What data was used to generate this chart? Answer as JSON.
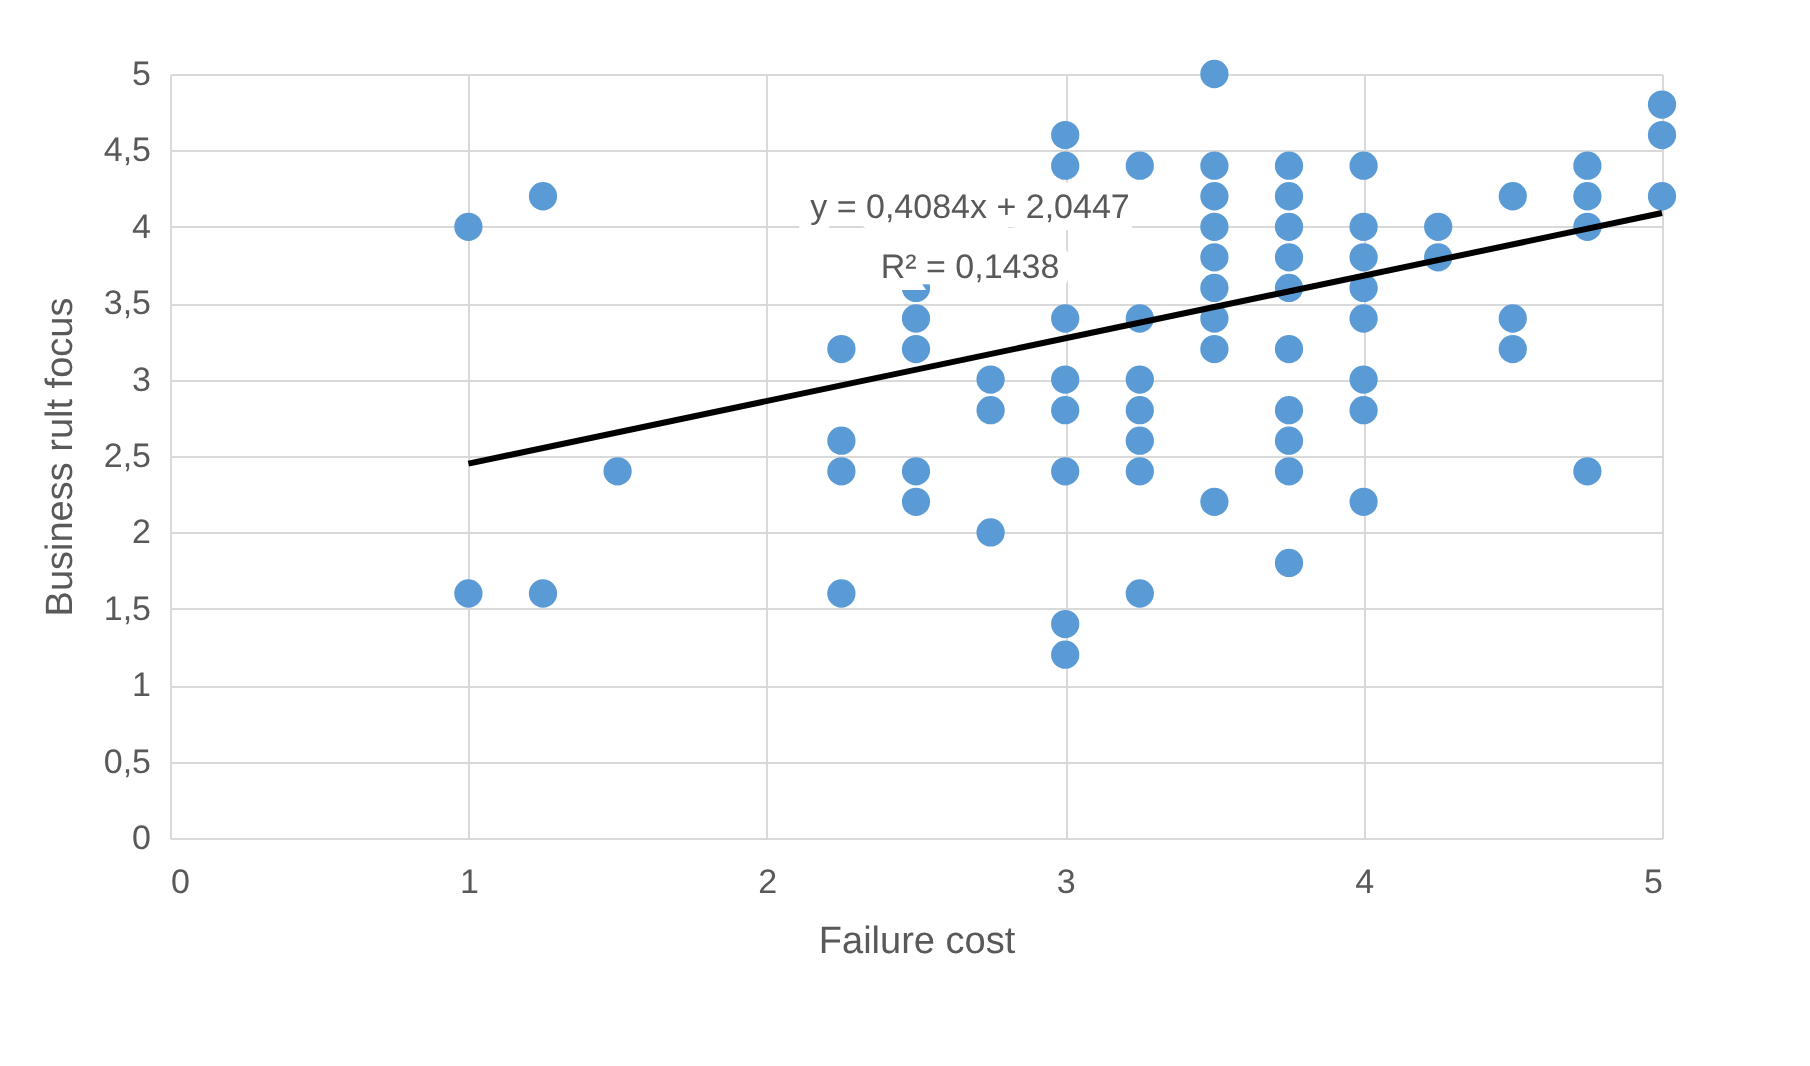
{
  "chart_data": {
    "type": "scatter",
    "xlabel": "Failure cost",
    "ylabel": "Business rult focus",
    "xlim": [
      0,
      5
    ],
    "xticks": [
      0,
      1,
      2,
      3,
      4,
      5
    ],
    "ylim": [
      0,
      5
    ],
    "yticks": [
      0,
      {
        "value": 0.5,
        "label": "0,5"
      },
      1,
      {
        "value": 1.5,
        "label": "1,5"
      },
      2,
      {
        "value": 2.5,
        "label": "2,5"
      },
      3,
      {
        "value": 3.5,
        "label": "3,5"
      },
      4,
      {
        "value": 4.5,
        "label": "4,5"
      },
      5
    ],
    "grid": true,
    "legend": false,
    "annotations": [
      "y = 0,4084x + 2,0447",
      "R² = 0,1438"
    ],
    "series": [
      {
        "color": "#5b9bd5",
        "marker": "circle",
        "x": [
          1,
          1,
          1.25,
          1.25,
          1.5,
          2.25,
          2.25,
          2.25,
          2.25,
          2.5,
          2.5,
          2.5,
          2.5,
          2.5,
          2.75,
          2.75,
          2.75,
          3,
          3,
          3,
          3,
          3,
          3,
          3,
          3,
          3.25,
          3.25,
          3.25,
          3.25,
          3.25,
          3.25,
          3.25,
          3.5,
          3.5,
          3.5,
          3.5,
          3.5,
          3.5,
          3.5,
          3.5,
          3.5,
          3.75,
          3.75,
          3.75,
          3.75,
          3.75,
          3.75,
          3.75,
          3.75,
          3.75,
          3.75,
          4,
          4,
          4,
          4,
          4,
          4,
          4,
          4,
          4.25,
          4.25,
          4.5,
          4.5,
          4.5,
          4.75,
          4.75,
          4.75,
          4.75,
          5,
          5,
          5
        ],
        "values": [
          4.0,
          1.6,
          4.2,
          1.6,
          2.4,
          3.2,
          2.6,
          2.4,
          1.6,
          3.6,
          3.4,
          3.2,
          2.4,
          2.2,
          3.0,
          2.8,
          2.0,
          4.6,
          4.4,
          3.4,
          3.0,
          2.8,
          2.4,
          1.4,
          1.2,
          4.4,
          3.4,
          3.0,
          2.8,
          2.6,
          2.4,
          1.6,
          5.0,
          4.4,
          4.2,
          4.0,
          3.8,
          3.6,
          3.4,
          3.2,
          2.2,
          4.4,
          4.2,
          4.0,
          3.8,
          3.6,
          3.2,
          2.8,
          2.6,
          2.4,
          1.8,
          4.4,
          4.0,
          3.8,
          3.6,
          3.4,
          3.0,
          2.8,
          2.2,
          4.0,
          3.8,
          4.2,
          3.4,
          3.2,
          4.4,
          4.2,
          4.0,
          2.4,
          4.8,
          4.6,
          4.2
        ]
      },
      {
        "type": "line",
        "color": "#000000",
        "x": [
          1,
          5
        ],
        "values": [
          2.45,
          4.09
        ]
      }
    ]
  }
}
